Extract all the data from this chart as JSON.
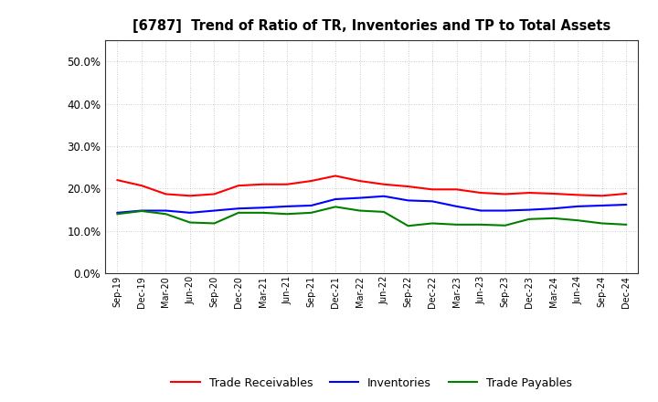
{
  "title": "[6787]  Trend of Ratio of TR, Inventories and TP to Total Assets",
  "x_labels": [
    "Sep-19",
    "Dec-19",
    "Mar-20",
    "Jun-20",
    "Sep-20",
    "Dec-20",
    "Mar-21",
    "Jun-21",
    "Sep-21",
    "Dec-21",
    "Mar-22",
    "Jun-22",
    "Sep-22",
    "Dec-22",
    "Mar-23",
    "Jun-23",
    "Sep-23",
    "Dec-23",
    "Mar-24",
    "Jun-24",
    "Sep-24",
    "Dec-24"
  ],
  "trade_receivables": [
    0.22,
    0.207,
    0.187,
    0.183,
    0.187,
    0.207,
    0.21,
    0.21,
    0.218,
    0.23,
    0.218,
    0.21,
    0.205,
    0.198,
    0.198,
    0.19,
    0.187,
    0.19,
    0.188,
    0.185,
    0.183,
    0.188
  ],
  "inventories": [
    0.143,
    0.148,
    0.148,
    0.143,
    0.148,
    0.153,
    0.155,
    0.158,
    0.16,
    0.175,
    0.178,
    0.182,
    0.172,
    0.17,
    0.158,
    0.148,
    0.148,
    0.15,
    0.153,
    0.158,
    0.16,
    0.162
  ],
  "trade_payables": [
    0.14,
    0.147,
    0.14,
    0.12,
    0.118,
    0.143,
    0.143,
    0.14,
    0.143,
    0.157,
    0.148,
    0.145,
    0.112,
    0.118,
    0.115,
    0.115,
    0.113,
    0.128,
    0.13,
    0.125,
    0.118,
    0.115
  ],
  "color_tr": "#FF0000",
  "color_inv": "#0000FF",
  "color_tp": "#008000",
  "ylim": [
    0.0,
    0.55
  ],
  "yticks": [
    0.0,
    0.1,
    0.2,
    0.3,
    0.4,
    0.5
  ],
  "legend_labels": [
    "Trade Receivables",
    "Inventories",
    "Trade Payables"
  ],
  "background_color": "#FFFFFF",
  "grid_color": "#BBBBBB"
}
